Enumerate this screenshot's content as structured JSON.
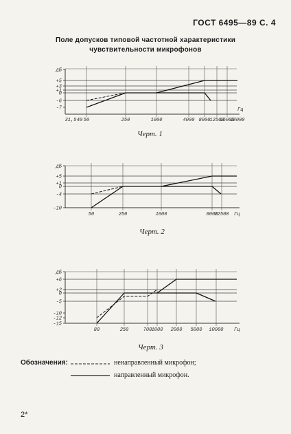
{
  "header": "ГОСТ 6495—89 С. 4",
  "title_lines": [
    "Поле допусков типовой частотной характеристики",
    "чувствительности микрофонов"
  ],
  "captions": [
    "Черт. 1",
    "Черт. 2",
    "Черт. 3"
  ],
  "legend": {
    "label": "Обозначения:",
    "dashed": "ненаправленный микрофон;",
    "solid": "направленный микрофон."
  },
  "footer": "2*",
  "chart_data": [
    {
      "type": "line",
      "xscale": "log",
      "xlabel_unit": "Гц",
      "ylabel_unit": "дБ",
      "y_tick_labels": [
        "дБ",
        "+5",
        "+3",
        "+1",
        "0",
        "-6",
        "-7"
      ],
      "x_tick_labels": [
        "31,5",
        "40",
        "50",
        "250",
        "1000",
        "4000",
        "8000",
        "12500",
        "16000",
        "18000"
      ],
      "series": [
        {
          "style": "dashed",
          "x": [
            50,
            250
          ],
          "y": [
            -6,
            0
          ]
        },
        {
          "style": "solid",
          "x": [
            50,
            250,
            1000,
            8000,
            18000
          ],
          "y": [
            -7,
            0,
            0,
            5,
            5
          ]
        },
        {
          "style": "solid",
          "x": [
            1000,
            8000,
            10000
          ],
          "y": [
            0,
            0,
            -6
          ]
        }
      ]
    },
    {
      "type": "line",
      "xscale": "log",
      "xlabel_unit": "Гц",
      "ylabel_unit": "дБ",
      "y_tick_labels": [
        "дБ",
        "+5",
        "+1",
        "0",
        "-4",
        "-10"
      ],
      "x_tick_labels": [
        "50",
        "250",
        "1000",
        "8000",
        "12500"
      ],
      "series": [
        {
          "style": "dashed",
          "x": [
            50,
            250
          ],
          "y": [
            -4,
            0
          ]
        },
        {
          "style": "solid",
          "x": [
            50,
            250,
            1000,
            8000,
            16000
          ],
          "y": [
            -10,
            0,
            0,
            5,
            5
          ]
        },
        {
          "style": "solid",
          "x": [
            1000,
            8000,
            10000
          ],
          "y": [
            0,
            0,
            -4
          ]
        }
      ]
    },
    {
      "type": "line",
      "xscale": "log",
      "xlabel_unit": "Гц",
      "ylabel_unit": "дБ",
      "y_tick_labels": [
        "дБ",
        "+6",
        "+2",
        "0",
        "-5",
        "-10",
        "-12",
        "-15"
      ],
      "x_tick_labels": [
        "80",
        "250",
        "700",
        "1000",
        "2000",
        "5000",
        "10000"
      ],
      "series": [
        {
          "style": "dashed",
          "x": [
            80,
            250,
            700,
            1000
          ],
          "y": [
            -12,
            -2,
            -2,
            2
          ]
        },
        {
          "style": "solid",
          "x": [
            80,
            250,
            1000,
            2000,
            10000,
            16000
          ],
          "y": [
            -15,
            0,
            0,
            6,
            6,
            6
          ]
        },
        {
          "style": "solid",
          "x": [
            1000,
            5000,
            8000
          ],
          "y": [
            0,
            0,
            -5
          ]
        }
      ]
    }
  ]
}
